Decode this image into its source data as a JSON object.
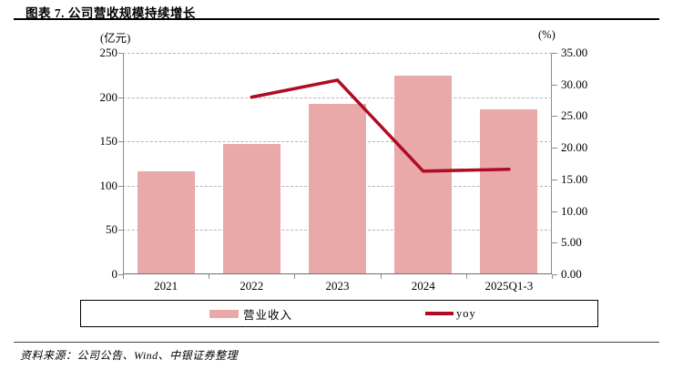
{
  "header": {
    "title": "图表 7. 公司营收规模持续增长"
  },
  "chart_data": {
    "type": "bar",
    "title": "公司营收规模持续增长",
    "categories": [
      "2021",
      "2022",
      "2023",
      "2024",
      "2025Q1-3"
    ],
    "series": [
      {
        "name": "营业收入",
        "type": "bar",
        "axis": "left",
        "values": [
          115,
          146,
          191,
          223,
          185
        ],
        "color": "#e9a9a9"
      },
      {
        "name": "yoy",
        "type": "line",
        "axis": "right",
        "values": [
          null,
          28.0,
          30.7,
          16.3,
          16.6
        ],
        "color": "#b00b23"
      }
    ],
    "left_axis": {
      "unit": "(亿元)",
      "min": 0,
      "max": 250,
      "tick_labels": [
        "250",
        "200",
        "150",
        "100",
        "50",
        "0"
      ]
    },
    "right_axis": {
      "unit": "(%)",
      "min": 0,
      "max": 35,
      "tick_labels": [
        "35.00",
        "30.00",
        "25.00",
        "20.00",
        "15.00",
        "10.00",
        "5.00",
        "0.00"
      ]
    },
    "grid": "horizontal-dashed",
    "legend_position": "bottom"
  },
  "legend": {
    "items": [
      {
        "label": "营业收入",
        "swatch": "bar",
        "color": "#e9a9a9"
      },
      {
        "label": "yoy",
        "swatch": "line",
        "color": "#b00b23"
      }
    ]
  },
  "footer": {
    "source": "资料来源：公司公告、Wind、中银证券整理"
  }
}
